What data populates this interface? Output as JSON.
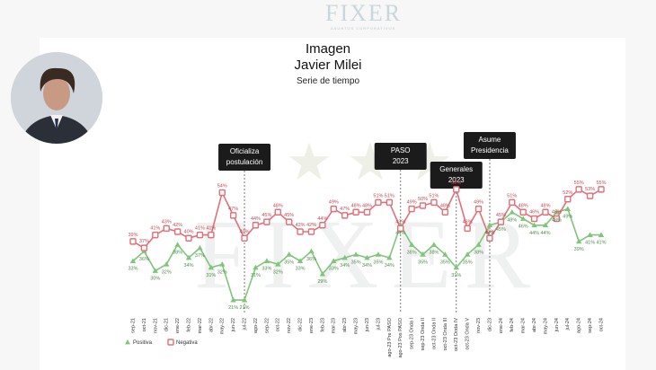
{
  "header": {
    "logo": "FIXER",
    "logo_sub": "ASUNTOS CORPORATIVOS"
  },
  "title_lines": [
    "Imagen",
    "Javier Milei"
  ],
  "subtitle": "Serie de tiempo",
  "watermark": "FIXER",
  "chart_data": {
    "type": "line",
    "x": [
      "sep-21",
      "oct-21",
      "nov-21",
      "dic-21",
      "ene-22",
      "feb-22",
      "mar-22",
      "abr-22",
      "may-22",
      "jun-22",
      "jul-22",
      "ago-22",
      "sep-22",
      "oct-22",
      "nov-22",
      "dic-22",
      "ene-23",
      "feb-23",
      "mar-23",
      "abr-23",
      "may-23",
      "jun-23",
      "jul-23",
      "ago-23 Pre PASO",
      "ago-23 Pos PASO",
      "sep-23 Onda I",
      "sep-23 Onda II",
      "oct-23 Onda II",
      "oct-23 Onda III",
      "oct-23 Onda IV",
      "oct-23 Onda V",
      "nov-23",
      "dic-23",
      "ene-24",
      "feb-24",
      "mar-24",
      "abr-24",
      "may-24",
      "jun-24",
      "jul-24",
      "ago-24",
      "sep-24",
      "oct-24"
    ],
    "series": [
      {
        "name": "Positiva",
        "color": "#7fc57a",
        "values": [
          33,
          36,
          30,
          32,
          38,
          34,
          37,
          31,
          32,
          21,
          21,
          31,
          33,
          32,
          35,
          33,
          36,
          29,
          33,
          34,
          35,
          34,
          35,
          34,
          44,
          38,
          35,
          38,
          35,
          31,
          35,
          38,
          44,
          45,
          48,
          46,
          44,
          44,
          48,
          49,
          39,
          41,
          41
        ]
      },
      {
        "name": "Negativa",
        "color": "#e0707a",
        "values": [
          39,
          37,
          41,
          43,
          42,
          40,
          41,
          41,
          54,
          47,
          40,
          44,
          45,
          48,
          45,
          42,
          42,
          44,
          49,
          47,
          48,
          48,
          51,
          51,
          43,
          49,
          50,
          51,
          48,
          55,
          43,
          49,
          40,
          45,
          51,
          48,
          46,
          48,
          46,
          52,
          55,
          53,
          55
        ]
      }
    ],
    "labels": {
      "Positiva": [
        "33%",
        "36%",
        "30%",
        "32%",
        "38%",
        "34%",
        "37%",
        "31%",
        "32%",
        "21%",
        "21%",
        "31%",
        "33%",
        "32%",
        "35%",
        "33%",
        "36%",
        "29%",
        "33%",
        "34%",
        "35%",
        "34%",
        "35%",
        "34%",
        "44%",
        "38%",
        "35%",
        "38%",
        "35%",
        "31%",
        "35%",
        "38%",
        "44%",
        "45%",
        "48%",
        "46%",
        "44%",
        "44%",
        "48%",
        "49%",
        "39%",
        "41%",
        "41%"
      ],
      "Negativa": [
        "39%",
        "37%",
        "41%",
        "43%",
        "42%",
        "40%",
        "41%",
        "41%",
        "54%",
        "47%",
        "40%",
        "44%",
        "45%",
        "48%",
        "45%",
        "42%",
        "42%",
        "44%",
        "49%",
        "47%",
        "48%",
        "48%",
        "51%",
        "51%",
        "43%",
        "49%",
        "50%",
        "51%",
        "48%",
        "55%",
        "43%",
        "49%",
        "40%",
        "45%",
        "51%",
        "48%",
        "46%",
        "48%",
        "46%",
        "52%",
        "55%",
        "53%",
        "55%"
      ]
    },
    "annotations": [
      {
        "x_index": 10,
        "lines": [
          "Oficializa",
          "postulación"
        ]
      },
      {
        "x_index": 24,
        "lines": [
          "PASO",
          "2023"
        ]
      },
      {
        "x_index": 29,
        "lines": [
          "Generales",
          "2023"
        ]
      },
      {
        "x_index": 32,
        "lines": [
          "Asume",
          "Presidencia"
        ]
      }
    ],
    "ylim": [
      18,
      58
    ],
    "grid": false,
    "legend": "bottom-left"
  }
}
